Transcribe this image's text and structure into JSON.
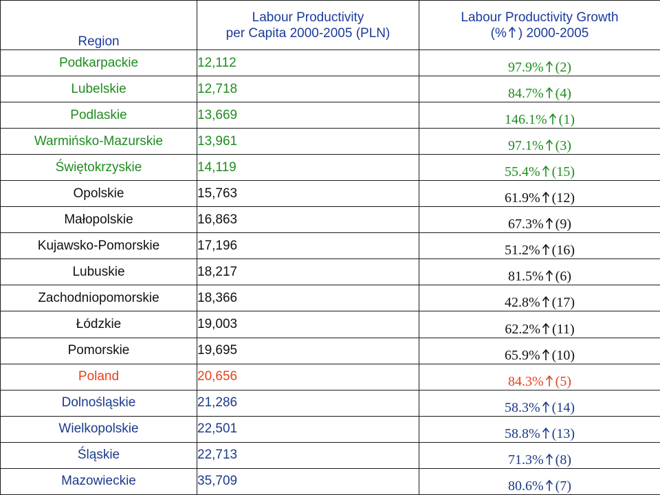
{
  "colors": {
    "header": "#1a3a9a",
    "green": "#1e8c1e",
    "black": "#111111",
    "red": "#e8401a",
    "navy": "#1a3a8a"
  },
  "icons": {
    "growth_marker": "up-arrow-icon"
  },
  "header": {
    "region": "Region",
    "productivity_line1": "Labour Productivity",
    "productivity_line2": "per Capita 2000-2005 (PLN)",
    "growth_line1": "Labour Productivity Growth",
    "growth_prefix": "(%",
    "growth_suffix": ") 2000-2005"
  },
  "rows": [
    {
      "region": "Podkarpackie",
      "productivity": "12,112",
      "growth": "97.9%",
      "rank": "(2)",
      "color": "green"
    },
    {
      "region": "Lubelskie",
      "productivity": "12,718",
      "growth": "84.7%",
      "rank": "(4)",
      "color": "green"
    },
    {
      "region": "Podlaskie",
      "productivity": "13,669",
      "growth": "146.1%",
      "rank": "(1)",
      "color": "green"
    },
    {
      "region": "Warmińsko-Mazurskie",
      "productivity": "13,961",
      "growth": "97.1%",
      "rank": "(3)",
      "color": "green"
    },
    {
      "region": "Świętokrzyskie",
      "productivity": "14,119",
      "growth": "55.4%",
      "rank": "(15)",
      "color": "green"
    },
    {
      "region": "Opolskie",
      "productivity": "15,763",
      "growth": "61.9%",
      "rank": "(12)",
      "color": "black"
    },
    {
      "region": "Małopolskie",
      "productivity": "16,863",
      "growth": "67.3%",
      "rank": "(9)",
      "color": "black"
    },
    {
      "region": "Kujawsko-Pomorskie",
      "productivity": "17,196",
      "growth": "51.2%",
      "rank": "(16)",
      "color": "black"
    },
    {
      "region": "Lubuskie",
      "productivity": "18,217",
      "growth": "81.5%",
      "rank": "(6)",
      "color": "black"
    },
    {
      "region": "Zachodniopomorskie",
      "productivity": "18,366",
      "growth": "42.8%",
      "rank": "(17)",
      "color": "black"
    },
    {
      "region": "Łódzkie",
      "productivity": "19,003",
      "growth": "62.2%",
      "rank": "(11)",
      "color": "black"
    },
    {
      "region": "Pomorskie",
      "productivity": "19,695",
      "growth": "65.9%",
      "rank": "(10)",
      "color": "black"
    },
    {
      "region": "Poland",
      "productivity": "20,656",
      "growth": "84.3%",
      "rank": "(5)",
      "color": "red"
    },
    {
      "region": "Dolnośląskie",
      "productivity": "21,286",
      "growth": "58.3%",
      "rank": "(14)",
      "color": "navy"
    },
    {
      "region": "Wielkopolskie",
      "productivity": "22,501",
      "growth": "58.8%",
      "rank": "(13)",
      "color": "navy"
    },
    {
      "region": "Śląskie",
      "productivity": "22,713",
      "growth": "71.3%",
      "rank": "(8)",
      "color": "navy"
    },
    {
      "region": "Mazowieckie",
      "productivity": "35,709",
      "growth": "80.6%",
      "rank": "(7)",
      "color": "navy"
    }
  ]
}
